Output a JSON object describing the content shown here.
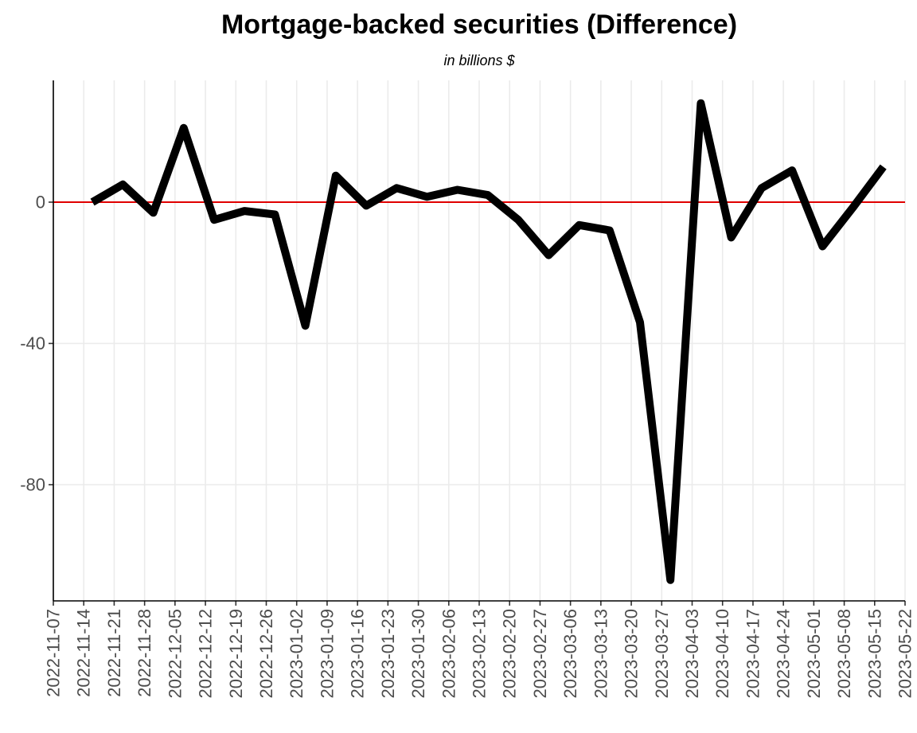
{
  "chart_data": {
    "type": "line",
    "title": "Mortgage-backed securities (Difference)",
    "subtitle": "in billions $",
    "xlabel": "",
    "ylabel": "",
    "x_ticks": [
      "2022-11-07",
      "2022-11-14",
      "2022-11-21",
      "2022-11-28",
      "2022-12-05",
      "2022-12-12",
      "2022-12-19",
      "2022-12-26",
      "2023-01-02",
      "2023-01-09",
      "2023-01-16",
      "2023-01-23",
      "2023-01-30",
      "2023-02-06",
      "2023-02-13",
      "2023-02-20",
      "2023-02-27",
      "2023-03-06",
      "2023-03-13",
      "2023-03-20",
      "2023-03-27",
      "2023-04-03",
      "2023-04-10",
      "2023-04-17",
      "2023-04-24",
      "2023-05-01",
      "2023-05-08",
      "2023-05-15",
      "2023-05-22"
    ],
    "y_ticks": [
      0,
      -40,
      -80
    ],
    "ylim": [
      -113,
      34
    ],
    "grid": true,
    "reference_line": {
      "y": 0,
      "color": "#e00000"
    },
    "series": [
      {
        "color": "#000000",
        "x": [
          "2022-11-16",
          "2022-11-23",
          "2022-11-30",
          "2022-12-07",
          "2022-12-14",
          "2022-12-21",
          "2022-12-28",
          "2023-01-04",
          "2023-01-11",
          "2023-01-18",
          "2023-01-25",
          "2023-02-01",
          "2023-02-08",
          "2023-02-15",
          "2023-02-22",
          "2023-03-01",
          "2023-03-08",
          "2023-03-15",
          "2023-03-22",
          "2023-03-29",
          "2023-04-05",
          "2023-04-12",
          "2023-04-19",
          "2023-04-26",
          "2023-05-03",
          "2023-05-10",
          "2023-05-17"
        ],
        "values": [
          0,
          5,
          -3,
          21,
          -5,
          -2.5,
          -3.5,
          -35,
          7.5,
          -1,
          4,
          1.5,
          3.5,
          2,
          -5,
          -15,
          -6.5,
          -8,
          -34,
          -107,
          28,
          -10,
          4,
          9,
          -12.5,
          -1.5,
          10
        ]
      }
    ]
  }
}
